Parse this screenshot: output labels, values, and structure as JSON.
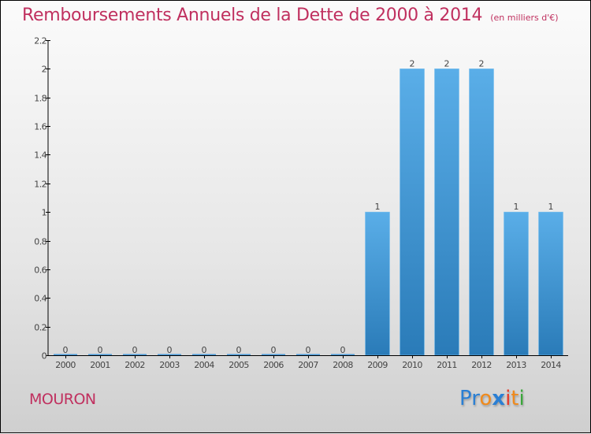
{
  "header": {
    "title": "Remboursements Annuels de la Dette de 2000 à 2014",
    "unit": "(en milliers d'€)"
  },
  "footer": {
    "city": "MOURON",
    "logo": {
      "letters": [
        "P",
        "r",
        "o",
        "x",
        "i",
        "t",
        "i"
      ],
      "colors": [
        "#2a7fd4",
        "#2a7fd4",
        "#f08a1c",
        "#2a7fd4",
        "#e83a2a",
        "#f08a1c",
        "#3aa63a"
      ]
    }
  },
  "colors": {
    "title": "#c0305f",
    "bar_top": "#5aaee8",
    "bar_bottom": "#2a7bb8",
    "axis": "#000000"
  },
  "chart_data": {
    "type": "bar",
    "title": "Remboursements Annuels de la Dette de 2000 à 2014",
    "subtitle": "(en milliers d'€)",
    "xlabel": "",
    "ylabel": "",
    "categories": [
      "2000",
      "2001",
      "2002",
      "2003",
      "2004",
      "2005",
      "2006",
      "2007",
      "2008",
      "2009",
      "2010",
      "2011",
      "2012",
      "2013",
      "2014"
    ],
    "values": [
      0,
      0,
      0,
      0,
      0,
      0,
      0,
      0,
      0,
      1,
      2,
      2,
      2,
      1,
      1
    ],
    "data_labels": [
      "0",
      "0",
      "0",
      "0",
      "0",
      "0",
      "0",
      "0",
      "0",
      "1",
      "2",
      "2",
      "2",
      "1",
      "1"
    ],
    "ylim": [
      0,
      2.2
    ],
    "yticks": [
      0,
      0.2,
      0.4,
      0.6,
      0.8,
      1,
      1.2,
      1.4,
      1.6,
      1.8,
      2,
      2.2
    ],
    "ytick_labels": [
      "0",
      "0.2",
      "0.4",
      "0.6",
      "0.8",
      "1",
      "1.2",
      "1.4",
      "1.6",
      "1.8",
      "2",
      "2.2"
    ],
    "grid": false,
    "legend": "none"
  }
}
